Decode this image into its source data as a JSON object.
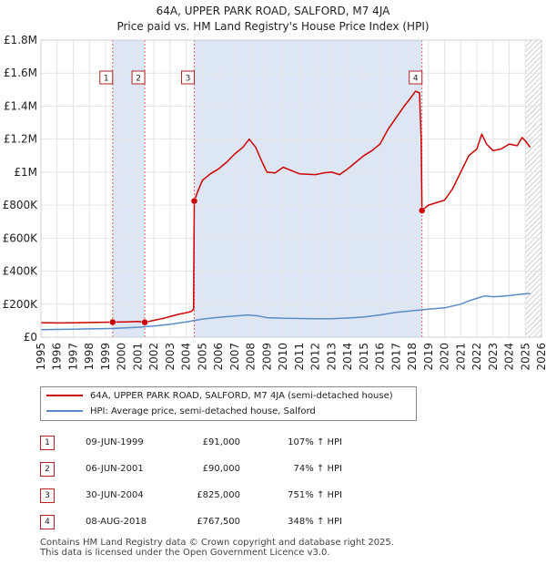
{
  "title_line1": "64A, UPPER PARK ROAD, SALFORD, M7 4JA",
  "title_line2": "Price paid vs. HM Land Registry's House Price Index (HPI)",
  "colors": {
    "price": "#cc0000",
    "hpi": "#5b8cc8",
    "shade": "#dde6f5",
    "grid": "#e4e4e4",
    "marker_box": "#b22222"
  },
  "legend": {
    "price_label": "64A, UPPER PARK ROAD, SALFORD, M7 4JA (semi-detached house)",
    "hpi_label": "HPI: Average price, semi-detached house, Salford"
  },
  "events": [
    {
      "id": "1",
      "date": "09-JUN-1999",
      "price": "£91,000",
      "hpi": "107% ↑ HPI"
    },
    {
      "id": "2",
      "date": "06-JUN-2001",
      "price": "£90,000",
      "hpi": "74% ↑ HPI"
    },
    {
      "id": "3",
      "date": "30-JUN-2004",
      "price": "£825,000",
      "hpi": "751% ↑ HPI"
    },
    {
      "id": "4",
      "date": "08-AUG-2018",
      "price": "£767,500",
      "hpi": "348% ↑ HPI"
    }
  ],
  "footer_line1": "Contains HM Land Registry data © Crown copyright and database right 2025.",
  "footer_line2": "This data is licensed under the Open Government Licence v3.0.",
  "chart_data": {
    "type": "line",
    "xlim": [
      1995,
      2026
    ],
    "ylim": [
      0,
      1800000
    ],
    "yticks": [
      0,
      200000,
      400000,
      600000,
      800000,
      1000000,
      1200000,
      1400000,
      1600000,
      1800000
    ],
    "ytick_labels": [
      "£0",
      "£200K",
      "£400K",
      "£600K",
      "£800K",
      "£1M",
      "£1.2M",
      "£1.4M",
      "£1.6M",
      "£1.8M"
    ],
    "xticks": [
      1995,
      1996,
      1997,
      1998,
      1999,
      2000,
      2001,
      2002,
      2003,
      2004,
      2005,
      2006,
      2007,
      2008,
      2009,
      2010,
      2011,
      2012,
      2013,
      2014,
      2015,
      2016,
      2017,
      2018,
      2019,
      2020,
      2021,
      2022,
      2023,
      2024,
      2025,
      2026
    ],
    "grid": true,
    "shaded_ranges": [
      [
        1999.44,
        2001.43
      ],
      [
        2004.5,
        2018.6
      ]
    ],
    "hatched_from": 2025.0,
    "transactions": [
      {
        "id": "1",
        "x": 1999.44,
        "y": 91000
      },
      {
        "id": "2",
        "x": 2001.43,
        "y": 90000
      },
      {
        "id": "3",
        "x": 2004.5,
        "y": 825000
      },
      {
        "id": "4",
        "x": 2018.6,
        "y": 767500
      }
    ],
    "series": [
      {
        "name": "64A, UPPER PARK ROAD, SALFORD, M7 4JA (semi-detached house)",
        "points": [
          [
            1995.0,
            88000
          ],
          [
            1996.0,
            86000
          ],
          [
            1997.0,
            87000
          ],
          [
            1998.0,
            89000
          ],
          [
            1999.44,
            91000
          ],
          [
            2000.3,
            93000
          ],
          [
            2001.0,
            95000
          ],
          [
            2001.43,
            90000
          ],
          [
            2002.0,
            102000
          ],
          [
            2002.5,
            112000
          ],
          [
            2003.0,
            125000
          ],
          [
            2003.5,
            138000
          ],
          [
            2004.0,
            148000
          ],
          [
            2004.3,
            155000
          ],
          [
            2004.45,
            170000
          ],
          [
            2004.5,
            825000
          ],
          [
            2004.7,
            880000
          ],
          [
            2005.0,
            950000
          ],
          [
            2005.5,
            990000
          ],
          [
            2006.0,
            1020000
          ],
          [
            2006.5,
            1060000
          ],
          [
            2007.0,
            1110000
          ],
          [
            2007.5,
            1150000
          ],
          [
            2007.9,
            1200000
          ],
          [
            2008.3,
            1150000
          ],
          [
            2008.7,
            1060000
          ],
          [
            2009.0,
            1000000
          ],
          [
            2009.5,
            995000
          ],
          [
            2010.0,
            1030000
          ],
          [
            2010.5,
            1010000
          ],
          [
            2011.0,
            990000
          ],
          [
            2012.0,
            985000
          ],
          [
            2012.5,
            995000
          ],
          [
            2013.0,
            1000000
          ],
          [
            2013.5,
            985000
          ],
          [
            2014.0,
            1020000
          ],
          [
            2014.5,
            1060000
          ],
          [
            2015.0,
            1100000
          ],
          [
            2015.5,
            1130000
          ],
          [
            2016.0,
            1170000
          ],
          [
            2016.5,
            1260000
          ],
          [
            2017.0,
            1330000
          ],
          [
            2017.5,
            1400000
          ],
          [
            2017.9,
            1450000
          ],
          [
            2018.2,
            1490000
          ],
          [
            2018.45,
            1480000
          ],
          [
            2018.55,
            1200000
          ],
          [
            2018.6,
            767500
          ],
          [
            2019.0,
            800000
          ],
          [
            2019.5,
            815000
          ],
          [
            2020.0,
            830000
          ],
          [
            2020.5,
            900000
          ],
          [
            2021.0,
            1000000
          ],
          [
            2021.5,
            1100000
          ],
          [
            2022.0,
            1140000
          ],
          [
            2022.3,
            1230000
          ],
          [
            2022.6,
            1170000
          ],
          [
            2023.0,
            1130000
          ],
          [
            2023.5,
            1140000
          ],
          [
            2024.0,
            1170000
          ],
          [
            2024.5,
            1160000
          ],
          [
            2024.8,
            1210000
          ],
          [
            2025.0,
            1190000
          ],
          [
            2025.3,
            1150000
          ]
        ]
      },
      {
        "name": "HPI: Average price, semi-detached house, Salford",
        "points": [
          [
            1995.0,
            46000
          ],
          [
            1996.0,
            47000
          ],
          [
            1997.0,
            48000
          ],
          [
            1998.0,
            50000
          ],
          [
            1999.0,
            52000
          ],
          [
            2000.0,
            55000
          ],
          [
            2001.0,
            60000
          ],
          [
            2002.0,
            68000
          ],
          [
            2003.0,
            78000
          ],
          [
            2004.0,
            92000
          ],
          [
            2005.0,
            110000
          ],
          [
            2006.0,
            120000
          ],
          [
            2007.0,
            128000
          ],
          [
            2007.8,
            135000
          ],
          [
            2008.5,
            128000
          ],
          [
            2009.0,
            118000
          ],
          [
            2010.0,
            115000
          ],
          [
            2011.0,
            113000
          ],
          [
            2012.0,
            112000
          ],
          [
            2013.0,
            112000
          ],
          [
            2014.0,
            116000
          ],
          [
            2015.0,
            122000
          ],
          [
            2016.0,
            135000
          ],
          [
            2017.0,
            150000
          ],
          [
            2018.0,
            160000
          ],
          [
            2019.0,
            170000
          ],
          [
            2020.0,
            178000
          ],
          [
            2021.0,
            200000
          ],
          [
            2021.5,
            220000
          ],
          [
            2022.0,
            235000
          ],
          [
            2022.5,
            250000
          ],
          [
            2023.0,
            245000
          ],
          [
            2023.5,
            248000
          ],
          [
            2024.0,
            252000
          ],
          [
            2024.5,
            258000
          ],
          [
            2025.0,
            262000
          ],
          [
            2025.3,
            265000
          ]
        ]
      }
    ]
  }
}
